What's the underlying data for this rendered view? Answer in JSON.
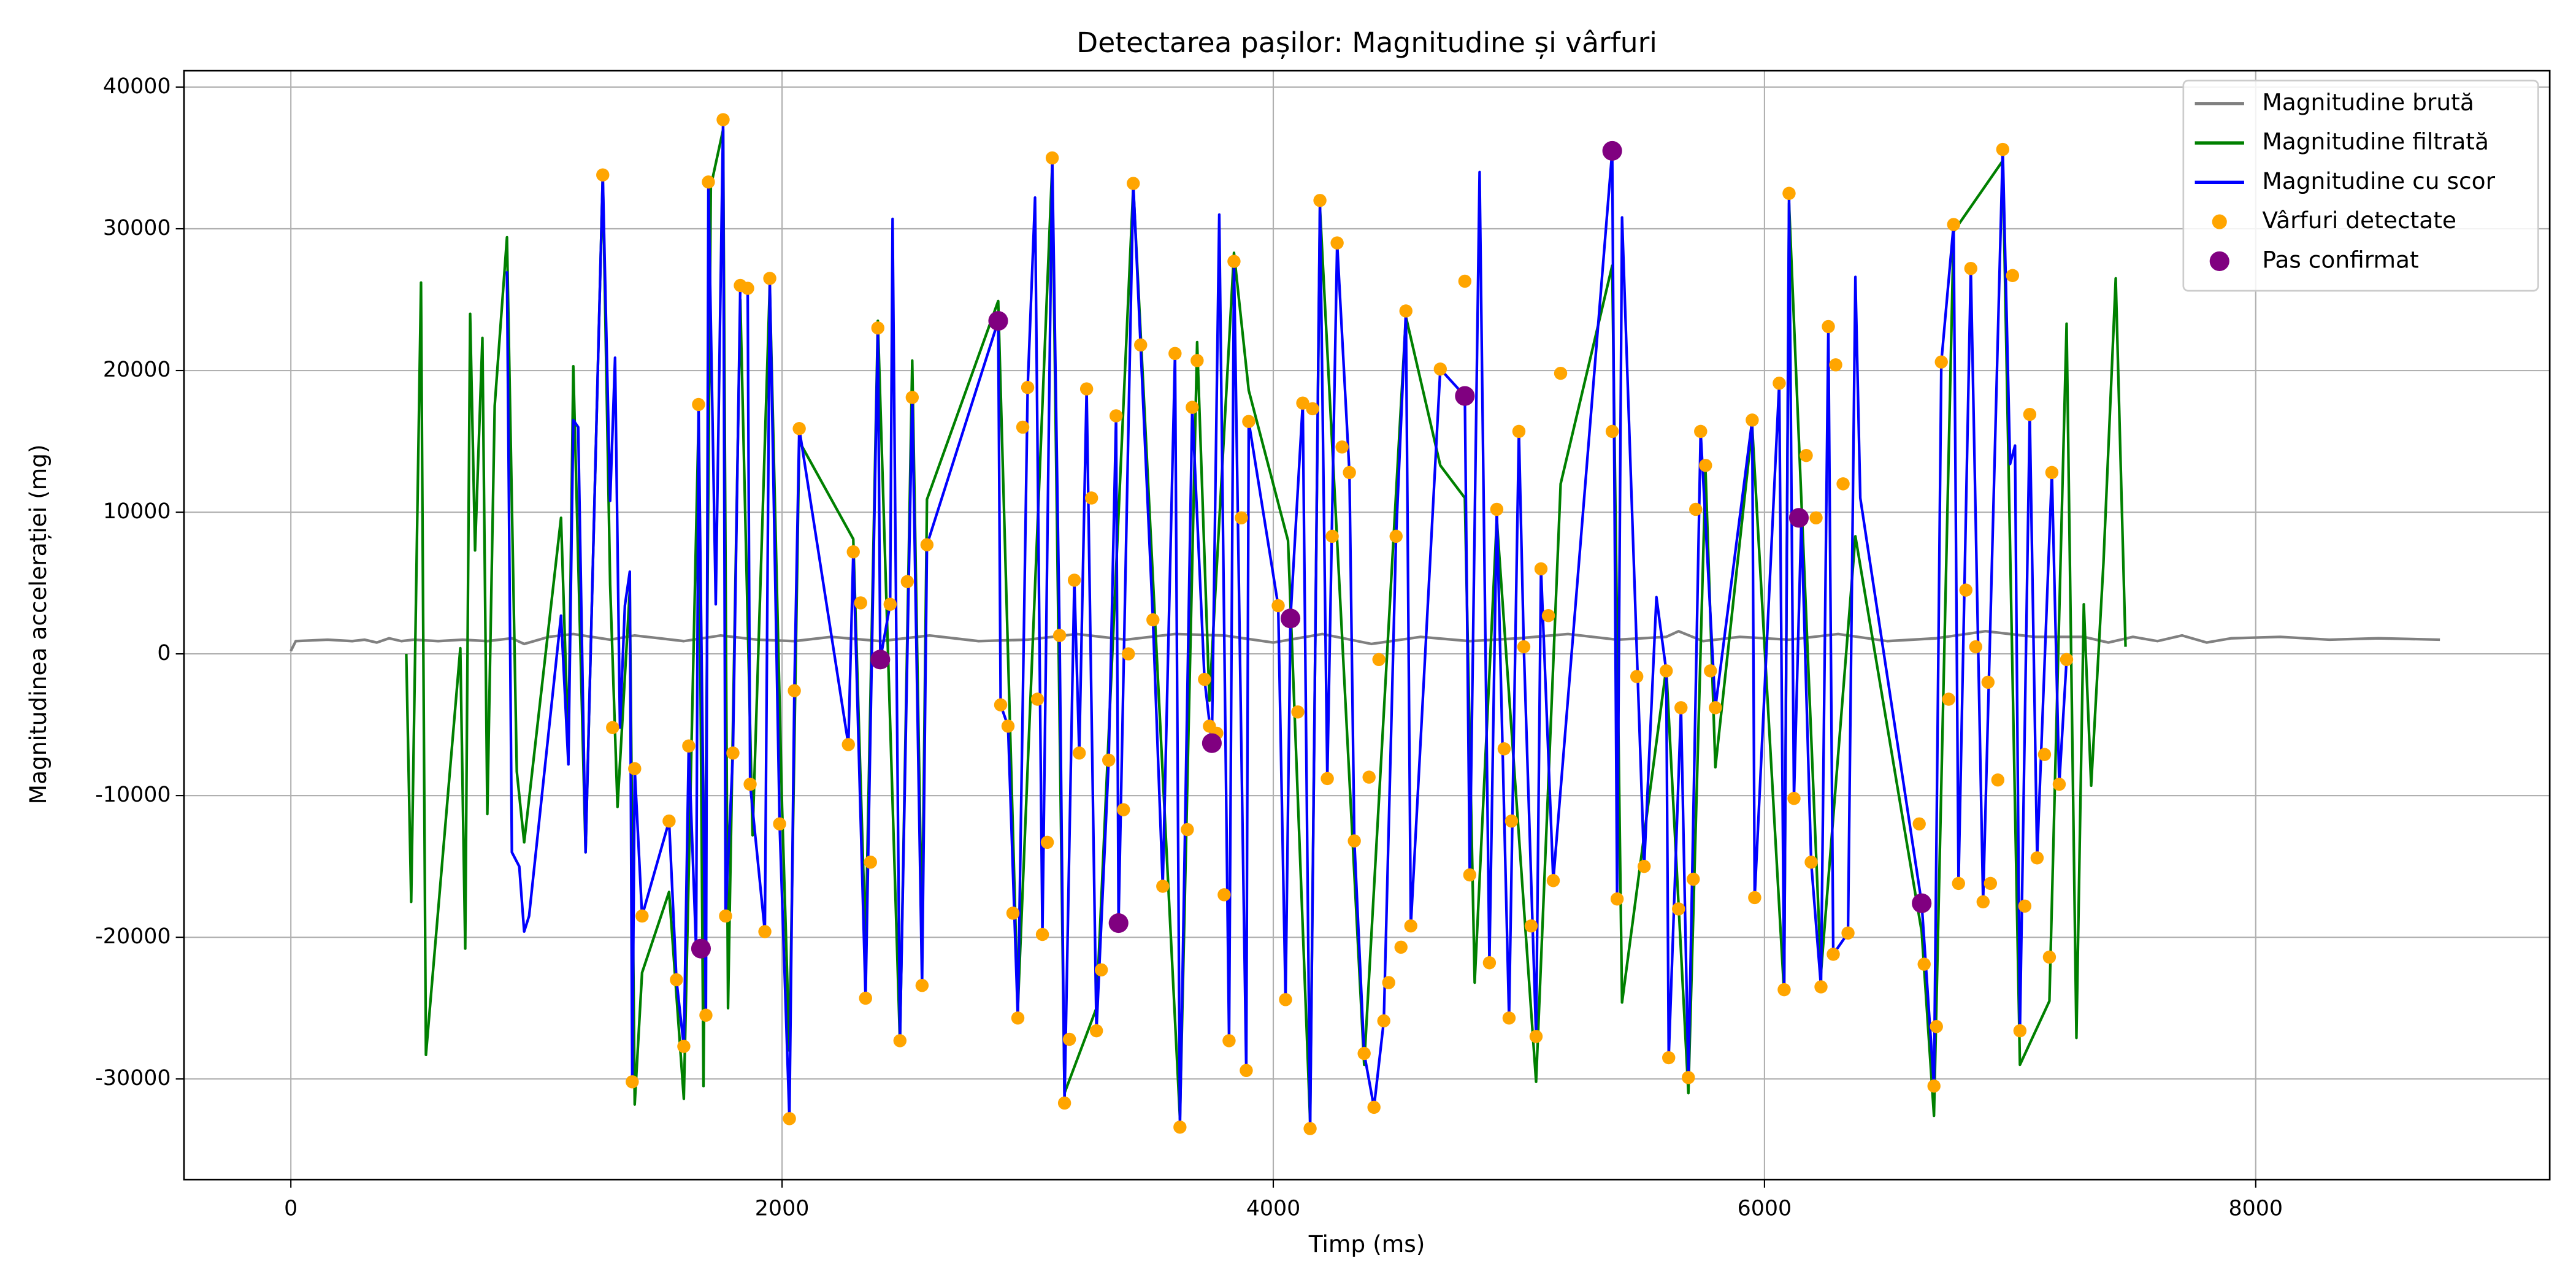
{
  "chart_data": {
    "type": "line",
    "title": "Detectarea pașilor: Magnitudine și vârfuri",
    "xlabel": "Timp (ms)",
    "ylabel": "Magnitudinea accelerației (mg)",
    "xlim": [
      -435,
      9197
    ],
    "ylim": [
      -37100,
      41160
    ],
    "xticks": [
      0,
      2000,
      4000,
      6000,
      8000
    ],
    "yticks": [
      -30000,
      -20000,
      -10000,
      0,
      10000,
      20000,
      30000,
      40000
    ],
    "grid": true,
    "legend": "upper right",
    "series": [
      {
        "name": "Magnitudine brută",
        "color": "#808080",
        "type": "line",
        "x": [
          0,
          20,
          150,
          250,
          300,
          350,
          400,
          450,
          500,
          600,
          700,
          800,
          900,
          950,
          1050,
          1150,
          1300,
          1400,
          1500,
          1600,
          1750,
          1900,
          2050,
          2200,
          2400,
          2600,
          2800,
          3000,
          3200,
          3400,
          3600,
          3800,
          4000,
          4200,
          4400,
          4600,
          4800,
          5000,
          5200,
          5400,
          5600,
          5650,
          5750,
          5900,
          6100,
          6300,
          6500,
          6700,
          6900,
          7100,
          7300,
          7400,
          7500,
          7600,
          7700,
          7800,
          7900,
          8100,
          8300,
          8500,
          8750
        ],
        "values": [
          200,
          900,
          1000,
          900,
          1000,
          800,
          1100,
          900,
          1000,
          900,
          1000,
          900,
          1100,
          700,
          1200,
          1400,
          1000,
          1300,
          1100,
          900,
          1300,
          1000,
          900,
          1200,
          900,
          1300,
          900,
          1000,
          1400,
          1000,
          1400,
          1300,
          800,
          1400,
          700,
          1200,
          900,
          1100,
          1400,
          1000,
          1200,
          1600,
          900,
          1200,
          1000,
          1400,
          900,
          1100,
          1600,
          1200,
          1200,
          800,
          1200,
          900,
          1300,
          800,
          1100,
          1200,
          1000,
          1100,
          1000
        ]
      },
      {
        "name": "Magnitudine filtrată",
        "color": "#008000",
        "type": "line",
        "x": [
          470,
          490,
          530,
          550,
          690,
          710,
          730,
          750,
          780,
          800,
          830,
          880,
          920,
          950,
          1100,
          1130,
          1150,
          1200,
          1270,
          1300,
          1330,
          1380,
          1400,
          1430,
          1540,
          1600,
          1660,
          1680,
          1710,
          1760,
          1780,
          1830,
          1880,
          1950,
          2000,
          2030,
          2070,
          2290,
          2340,
          2390,
          2480,
          2530,
          2570,
          2590,
          2880,
          2960,
          3100,
          3150,
          3280,
          3430,
          3620,
          3690,
          3740,
          3840,
          3900,
          4060,
          4150,
          4190,
          4370,
          4540,
          4680,
          4780,
          4820,
          4910,
          5070,
          5170,
          5380,
          5420,
          5600,
          5690,
          5760,
          5800,
          5950,
          6080,
          6100,
          6230,
          6370,
          6640,
          6690,
          6770,
          6970,
          7040,
          7160,
          7230,
          7270,
          7300,
          7330,
          7380,
          7430,
          7470
        ],
        "values": [
          0,
          -17500,
          26200,
          -28300,
          400,
          -20800,
          24000,
          7300,
          22300,
          -11300,
          17500,
          29400,
          -8300,
          -13300,
          9600,
          -6700,
          20300,
          -14000,
          33800,
          4900,
          -10800,
          4500,
          -31800,
          -22500,
          -16800,
          -31400,
          16500,
          -30500,
          33000,
          37000,
          -25000,
          25000,
          -12800,
          26000,
          -10800,
          -28000,
          15000,
          8100,
          -20600,
          23500,
          -27500,
          20700,
          -20000,
          10900,
          24900,
          -25000,
          34500,
          -31000,
          -25000,
          33000,
          -32800,
          22000,
          -3300,
          28300,
          18600,
          8000,
          -33000,
          31500,
          -29000,
          23800,
          13300,
          11000,
          -23200,
          9500,
          -30200,
          12000,
          27400,
          -24600,
          -1000,
          -31000,
          12900,
          -8000,
          16000,
          -24000,
          31800,
          -22500,
          8300,
          -19600,
          -32600,
          29800,
          34800,
          -29000,
          -24500,
          23300,
          -27100,
          3500,
          -9300,
          6400,
          26500,
          500
        ]
      },
      {
        "name": "Magnitudine cu scor",
        "color": "#0000ff",
        "type": "line",
        "x": [
          880,
          900,
          930,
          950,
          970,
          1100,
          1130,
          1150,
          1170,
          1200,
          1270,
          1300,
          1320,
          1340,
          1360,
          1380,
          1390,
          1400,
          1430,
          1540,
          1570,
          1600,
          1620,
          1650,
          1660,
          1690,
          1700,
          1730,
          1760,
          1770,
          1800,
          1830,
          1860,
          1870,
          1930,
          1950,
          1990,
          2030,
          2050,
          2070,
          2270,
          2290,
          2340,
          2390,
          2400,
          2440,
          2450,
          2480,
          2530,
          2570,
          2590,
          2880,
          2890,
          2920,
          2960,
          3000,
          3030,
          3060,
          3100,
          3130,
          3150,
          3190,
          3210,
          3240,
          3280,
          3330,
          3360,
          3370,
          3430,
          3510,
          3550,
          3600,
          3620,
          3670,
          3720,
          3750,
          3780,
          3820,
          3840,
          3890,
          3900,
          4020,
          4050,
          4070,
          4120,
          4150,
          4190,
          4220,
          4260,
          4310,
          4330,
          4370,
          4410,
          4450,
          4500,
          4540,
          4560,
          4680,
          4780,
          4800,
          4840,
          4880,
          4910,
          4960,
          5000,
          5020,
          5070,
          5090,
          5140,
          5380,
          5400,
          5420,
          5510,
          5560,
          5600,
          5610,
          5660,
          5690,
          5740,
          5800,
          5950,
          5960,
          6060,
          6080,
          6100,
          6120,
          6150,
          6190,
          6230,
          6260,
          6280,
          6340,
          6370,
          6390,
          6640,
          6690,
          6720,
          6770,
          6790,
          6840,
          6890,
          6970,
          7000,
          7020,
          7040,
          7080,
          7110,
          7170,
          7200,
          7230
        ],
        "values": [
          27000,
          -14000,
          -15000,
          -19600,
          -18500,
          2700,
          -7800,
          16500,
          16000,
          -14000,
          33800,
          10800,
          20900,
          -5200,
          3400,
          5800,
          -30200,
          -8100,
          -18500,
          -11800,
          -23000,
          -27700,
          -6500,
          -20800,
          17600,
          -25500,
          33300,
          3500,
          37700,
          -18500,
          -7000,
          26000,
          25800,
          -9200,
          -19600,
          26500,
          -12000,
          -32800,
          -2600,
          15900,
          -6400,
          7200,
          -24300,
          23000,
          -400,
          3500,
          30700,
          -27300,
          18100,
          -23400,
          7700,
          23500,
          -3600,
          -5100,
          -25700,
          18800,
          32200,
          -19800,
          35000,
          1300,
          -31700,
          5200,
          -7000,
          18700,
          -26600,
          -7500,
          16800,
          -19000,
          33200,
          2400,
          -16400,
          21200,
          -33400,
          17400,
          -1800,
          -6300,
          31000,
          -27300,
          27700,
          -29400,
          16400,
          3400,
          -24400,
          2500,
          17700,
          -33500,
          32000,
          -8800,
          29000,
          12800,
          -13200,
          -28200,
          -32000,
          -25900,
          8300,
          24200,
          -19200,
          20100,
          18200,
          -15600,
          34000,
          -21800,
          10200,
          -25700,
          15700,
          500,
          -27000,
          6000,
          -16000,
          35500,
          -17300,
          30800,
          -15000,
          4000,
          -1200,
          -28500,
          -3800,
          -29900,
          15700,
          -3800,
          16500,
          -17200,
          19100,
          -23700,
          32500,
          -10200,
          9500,
          -14700,
          -23500,
          23100,
          -21200,
          -19700,
          26600,
          11000,
          -17600,
          -30500,
          20600,
          30300,
          -16200,
          27200,
          -17500,
          35600,
          13400,
          14700,
          -26600,
          16900,
          -14400,
          12800,
          -9200,
          -400
        ]
      },
      {
        "name": "Vârfuri detectate",
        "color": "#ffa500",
        "type": "scatter",
        "x": [
          1270,
          1310,
          1390,
          1400,
          1430,
          1540,
          1570,
          1600,
          1620,
          1660,
          1690,
          1700,
          1760,
          1770,
          1800,
          1830,
          1860,
          1870,
          1930,
          1950,
          1990,
          2030,
          2050,
          2070,
          2270,
          2290,
          2320,
          2340,
          2360,
          2390,
          2440,
          2480,
          2510,
          2530,
          2570,
          2590,
          2880,
          2890,
          2920,
          2940,
          2960,
          2980,
          3000,
          3040,
          3060,
          3080,
          3100,
          3130,
          3150,
          3170,
          3190,
          3210,
          3240,
          3260,
          3280,
          3300,
          3330,
          3360,
          3390,
          3410,
          3430,
          3460,
          3510,
          3550,
          3600,
          3620,
          3650,
          3670,
          3690,
          3720,
          3740,
          3770,
          3800,
          3820,
          3840,
          3870,
          3890,
          3900,
          4020,
          4050,
          4080,
          4100,
          4120,
          4150,
          4160,
          4190,
          4220,
          4240,
          4260,
          4280,
          4310,
          4330,
          4370,
          4390,
          4410,
          4430,
          4450,
          4470,
          4500,
          4520,
          4540,
          4560,
          4680,
          4780,
          4800,
          4880,
          4910,
          4940,
          4960,
          4970,
          5000,
          5020,
          5050,
          5070,
          5090,
          5120,
          5140,
          5170,
          5380,
          5400,
          5480,
          5510,
          5600,
          5610,
          5650,
          5660,
          5690,
          5710,
          5720,
          5740,
          5760,
          5780,
          5800,
          5950,
          5960,
          6060,
          6080,
          6100,
          6120,
          6150,
          6170,
          6190,
          6210,
          6230,
          6260,
          6280,
          6290,
          6320,
          6340,
          6630,
          6650,
          6690,
          6700,
          6720,
          6750,
          6770,
          6790,
          6820,
          6840,
          6860,
          6890,
          6910,
          6920,
          6950,
          6970,
          7010,
          7040,
          7060,
          7080,
          7110,
          7140,
          7160,
          7170,
          7200,
          7230
        ],
        "values": [
          33800,
          -5200,
          -30200,
          -8100,
          -18500,
          -11800,
          -23000,
          -27700,
          -6500,
          17600,
          -25500,
          33300,
          37700,
          -18500,
          -7000,
          26000,
          25800,
          -9200,
          -19600,
          26500,
          -12000,
          -32800,
          -2600,
          15900,
          -6400,
          7200,
          3600,
          -24300,
          -14700,
          23000,
          3500,
          -27300,
          5100,
          18100,
          -23400,
          7700,
          23500,
          -3600,
          -5100,
          -18300,
          -25700,
          16000,
          18800,
          -3200,
          -19800,
          -13300,
          35000,
          1300,
          -31700,
          -27200,
          5200,
          -7000,
          18700,
          11000,
          -26600,
          -22300,
          -7500,
          16800,
          -11000,
          0,
          33200,
          21800,
          2400,
          -16400,
          21200,
          -33400,
          -12400,
          17400,
          20700,
          -1800,
          -5100,
          -5600,
          -17000,
          -27300,
          27700,
          9600,
          -29400,
          16400,
          3400,
          -24400,
          2600,
          -4100,
          17700,
          -33500,
          17300,
          32000,
          -8800,
          8300,
          29000,
          14600,
          12800,
          -13200,
          -28200,
          -8700,
          -32000,
          -400,
          -25900,
          -23200,
          8300,
          -20700,
          24200,
          -19200,
          20100,
          26300,
          -15600,
          -21800,
          10200,
          -6700,
          -25700,
          -11800,
          15700,
          500,
          -19200,
          -27000,
          6000,
          2700,
          -16000,
          19800,
          15700,
          -17300,
          -1600,
          -15000,
          -1200,
          -28500,
          -18000,
          -3800,
          -29900,
          -15900,
          10200,
          15700,
          13300,
          -1200,
          -3800,
          16500,
          -17200,
          19100,
          -23700,
          32500,
          -10200,
          9500,
          14000,
          -14700,
          9600,
          -23500,
          23100,
          -21200,
          20400,
          12000,
          -19700,
          -12000,
          -21900,
          -30500,
          -26300,
          20600,
          -3200,
          30300,
          -16200,
          4500,
          27200,
          500,
          -17500,
          -2000,
          -16200,
          -8900,
          35600,
          26700,
          -26600,
          -17800,
          16900,
          -14400,
          -7100,
          -21400,
          12800,
          -9200,
          -400
        ]
      },
      {
        "name": "Pas confirmat",
        "color": "#800080",
        "type": "scatter",
        "x": [
          1670,
          2400,
          2880,
          3370,
          3750,
          4070,
          4780,
          5380,
          6140,
          6640
        ],
        "values": [
          -20800,
          -400,
          23500,
          -19000,
          -6300,
          2500,
          18200,
          35500,
          9600,
          -17600
        ]
      }
    ]
  }
}
